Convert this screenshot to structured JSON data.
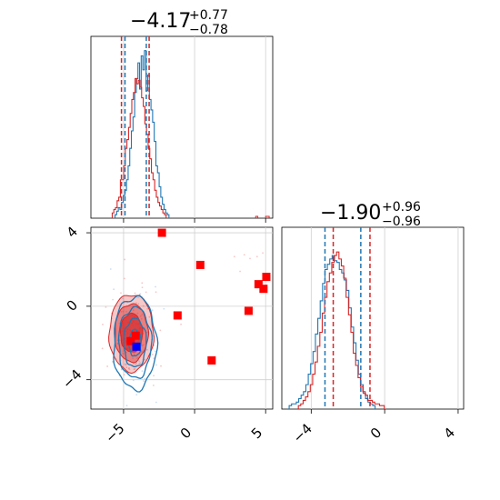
{
  "chart_data": [
    {
      "type": "histogram",
      "panel": "top-left marginal",
      "title": {
        "median": "−4.17",
        "plus": "+0.77",
        "minus": "−0.78"
      },
      "xlim": [
        -7.3,
        5.5
      ],
      "xticks": [
        -5,
        0,
        5
      ],
      "tick_labels_shown": false,
      "grid": true,
      "quantile_lines": {
        "blue": [
          -4.9,
          -3.4
        ],
        "red": [
          -5.15,
          -3.2
        ]
      },
      "series": [
        {
          "name": "",
          "color": "#1f77b4",
          "bins_x0": -5.6,
          "bin_width": 0.115,
          "values": [
            0.02,
            0.04,
            0.06,
            0.05,
            0.09,
            0.13,
            0.16,
            0.22,
            0.3,
            0.4,
            0.5,
            0.58,
            0.72,
            0.8,
            0.89,
            0.74,
            0.93,
            0.85,
            0.96,
            0.73,
            0.82,
            0.68,
            0.62,
            0.55,
            0.44,
            0.3,
            0.26,
            0.18,
            0.12,
            0.08,
            0.05,
            0.03,
            0.02
          ]
        },
        {
          "name": "",
          "color": "#d62728",
          "bins_x0": -5.8,
          "bin_width": 0.115,
          "values": [
            0.03,
            0.05,
            0.06,
            0.1,
            0.12,
            0.22,
            0.22,
            0.3,
            0.4,
            0.45,
            0.52,
            0.6,
            0.68,
            0.72,
            0.8,
            0.77,
            0.79,
            0.75,
            0.69,
            0.64,
            0.54,
            0.48,
            0.4,
            0.34,
            0.26,
            0.22,
            0.16,
            0.12,
            0.09,
            0.07,
            0.05,
            0.03,
            0.02
          ]
        }
      ]
    },
    {
      "type": "contour",
      "panel": "bottom-left 2D",
      "xlim": [
        -7.3,
        5.5
      ],
      "ylim": [
        -5.6,
        4.3
      ],
      "xticks": [
        -5,
        0,
        5
      ],
      "xtick_labels": [
        "−5",
        "0",
        "5"
      ],
      "yticks": [
        -4,
        0,
        4
      ],
      "ytick_labels": [
        "−4",
        "0",
        "4"
      ],
      "grid": true,
      "contours": {
        "red": {
          "center": [
            -4.45,
            -1.45
          ],
          "sigma": [
            0.78,
            1.05
          ]
        },
        "blue": {
          "center": [
            -4.2,
            -2.0
          ],
          "sigma": [
            0.72,
            1.2
          ]
        }
      },
      "red_markers": [
        [
          -2.3,
          4.0
        ],
        [
          0.4,
          2.25
        ],
        [
          -1.2,
          -0.5
        ],
        [
          1.2,
          -2.95
        ],
        [
          3.8,
          -0.25
        ],
        [
          4.5,
          1.2
        ],
        [
          4.85,
          0.95
        ],
        [
          5.05,
          1.6
        ],
        [
          -4.5,
          -1.9
        ],
        [
          -4.15,
          -1.6
        ]
      ],
      "blue_marker": [
        -4.1,
        -2.2
      ]
    },
    {
      "type": "histogram",
      "panel": "bottom-right marginal",
      "title": {
        "median": "−1.90",
        "plus": "+0.96",
        "minus": "−0.96"
      },
      "xlim": [
        -5.6,
        4.3
      ],
      "xticks": [
        -4,
        0,
        4
      ],
      "xtick_labels": [
        "−4",
        "0",
        "4"
      ],
      "grid": true,
      "quantile_lines": {
        "blue": [
          -3.25,
          -1.3
        ],
        "red": [
          -2.8,
          -0.8
        ]
      },
      "series": [
        {
          "name": "",
          "color": "#1f77b4",
          "bins_x0": -5.2,
          "bin_width": 0.13,
          "values": [
            0.02,
            0.03,
            0.03,
            0.04,
            0.06,
            0.08,
            0.1,
            0.14,
            0.2,
            0.26,
            0.33,
            0.43,
            0.52,
            0.62,
            0.72,
            0.8,
            0.83,
            0.86,
            0.88,
            0.85,
            0.84,
            0.8,
            0.78,
            0.74,
            0.68,
            0.58,
            0.47,
            0.38,
            0.28,
            0.2,
            0.14,
            0.09,
            0.06,
            0.04,
            0.03,
            0.02
          ]
        },
        {
          "name": "",
          "color": "#d62728",
          "bins_x0": -4.7,
          "bin_width": 0.13,
          "values": [
            0.02,
            0.03,
            0.05,
            0.07,
            0.1,
            0.14,
            0.2,
            0.27,
            0.36,
            0.44,
            0.55,
            0.64,
            0.73,
            0.78,
            0.84,
            0.88,
            0.9,
            0.86,
            0.82,
            0.75,
            0.64,
            0.54,
            0.44,
            0.32,
            0.25,
            0.18,
            0.13,
            0.1,
            0.08,
            0.05,
            0.05,
            0.04,
            0.03,
            0.03,
            0.02,
            0.02
          ]
        }
      ]
    }
  ]
}
